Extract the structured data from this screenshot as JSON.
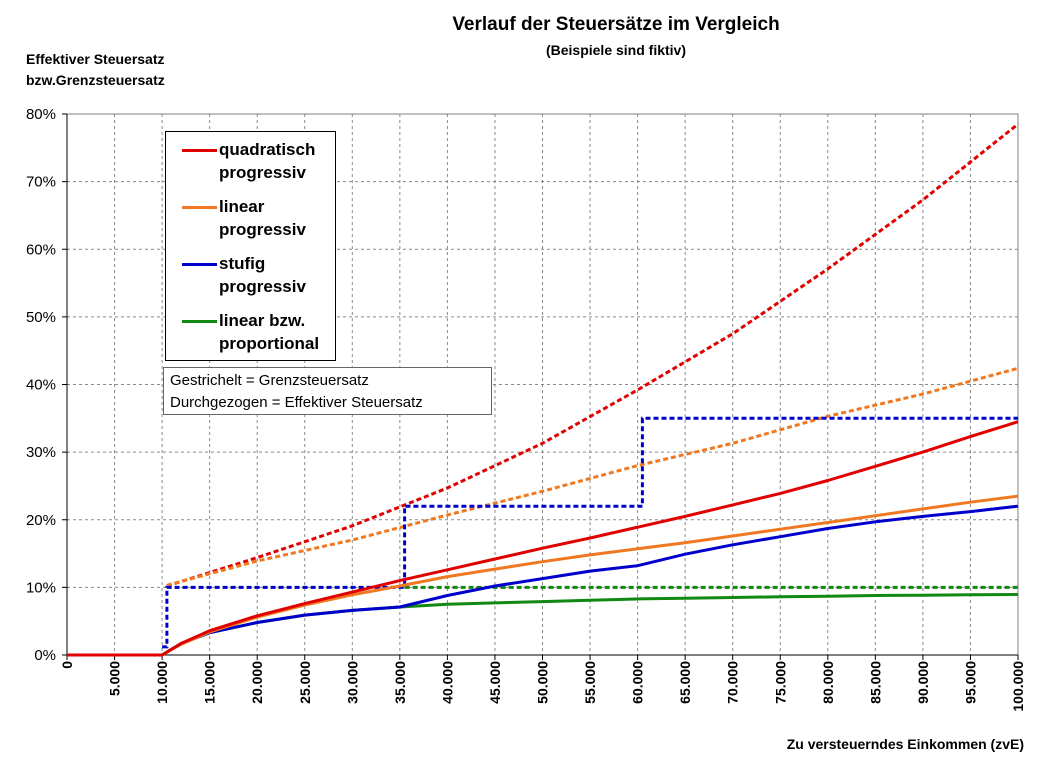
{
  "chart_data": {
    "type": "line",
    "title": "Verlauf der Steuersätze im Vergleich",
    "subtitle": "(Beispiele sind fiktiv)",
    "ylabel_lines": [
      "Effektiver Steuersatz",
      "bzw.Grenzsteuersatz"
    ],
    "xlabel": "Zu versteuerndes Einkommen (zvE)",
    "xlim": [
      0,
      100000
    ],
    "ylim": [
      0,
      80
    ],
    "x_ticks": [
      0,
      5000,
      10000,
      15000,
      20000,
      25000,
      30000,
      35000,
      40000,
      45000,
      50000,
      55000,
      60000,
      65000,
      70000,
      75000,
      80000,
      85000,
      90000,
      95000,
      100000
    ],
    "x_tick_labels": [
      "0",
      "5.000",
      "10.000",
      "15.000",
      "20.000",
      "25.000",
      "30.000",
      "35.000",
      "40.000",
      "45.000",
      "50.000",
      "55.000",
      "60.000",
      "65.000",
      "70.000",
      "75.000",
      "80.000",
      "85.000",
      "90.000",
      "95.000",
      "100.000"
    ],
    "y_ticks": [
      0,
      10,
      20,
      30,
      40,
      50,
      60,
      70,
      80
    ],
    "y_tick_labels": [
      "0%",
      "10%",
      "20%",
      "30%",
      "40%",
      "50%",
      "60%",
      "70%",
      "80%"
    ],
    "grid": true,
    "legend_position": "top-left",
    "series": [
      {
        "name": "quadratisch progressiv",
        "legend_lines": [
          "quadratisch",
          "progressiv"
        ],
        "color": "#e00000",
        "effective": [
          [
            0,
            0
          ],
          [
            10000,
            0
          ],
          [
            12000,
            1.7
          ],
          [
            15000,
            3.6
          ],
          [
            20000,
            5.8
          ],
          [
            25000,
            7.6
          ],
          [
            30000,
            9.3
          ],
          [
            35000,
            11.0
          ],
          [
            40000,
            12.6
          ],
          [
            45000,
            14.2
          ],
          [
            50000,
            15.8
          ],
          [
            55000,
            17.3
          ],
          [
            60000,
            18.9
          ],
          [
            65000,
            20.5
          ],
          [
            70000,
            22.2
          ],
          [
            75000,
            23.9
          ],
          [
            80000,
            25.8
          ],
          [
            85000,
            27.9
          ],
          [
            90000,
            30.0
          ],
          [
            95000,
            32.3
          ],
          [
            100000,
            34.5
          ]
        ],
        "marginal": [
          [
            10500,
            10.2
          ],
          [
            20000,
            14.4
          ],
          [
            30000,
            19.1
          ],
          [
            40000,
            24.7
          ],
          [
            50000,
            31.3
          ],
          [
            60000,
            39.2
          ],
          [
            70000,
            47.5
          ],
          [
            80000,
            57.1
          ],
          [
            90000,
            67.3
          ],
          [
            100000,
            78.5
          ]
        ]
      },
      {
        "name": "linear progressiv",
        "legend_lines": [
          "linear",
          "progressiv"
        ],
        "color": "#f07820",
        "effective": [
          [
            0,
            0
          ],
          [
            10000,
            0
          ],
          [
            12000,
            1.6
          ],
          [
            15000,
            3.4
          ],
          [
            20000,
            5.6
          ],
          [
            25000,
            7.4
          ],
          [
            30000,
            8.9
          ],
          [
            35000,
            10.2
          ],
          [
            40000,
            11.6
          ],
          [
            45000,
            12.7
          ],
          [
            50000,
            13.8
          ],
          [
            55000,
            14.8
          ],
          [
            60000,
            15.7
          ],
          [
            65000,
            16.6
          ],
          [
            70000,
            17.6
          ],
          [
            75000,
            18.6
          ],
          [
            80000,
            19.6
          ],
          [
            85000,
            20.6
          ],
          [
            90000,
            21.6
          ],
          [
            95000,
            22.6
          ],
          [
            100000,
            23.5
          ]
        ],
        "marginal": [
          [
            10500,
            10.3
          ],
          [
            20000,
            13.9
          ],
          [
            30000,
            17.0
          ],
          [
            40000,
            20.7
          ],
          [
            50000,
            24.2
          ],
          [
            60000,
            28.0
          ],
          [
            70000,
            31.3
          ],
          [
            80000,
            35.3
          ],
          [
            90000,
            38.6
          ],
          [
            100000,
            42.4
          ]
        ]
      },
      {
        "name": "stufig progressiv",
        "legend_lines": [
          "stufig",
          "progressiv"
        ],
        "color": "#0000cc",
        "effective": [
          [
            0,
            0
          ],
          [
            10000,
            0
          ],
          [
            12000,
            1.7
          ],
          [
            15000,
            3.3
          ],
          [
            20000,
            4.8
          ],
          [
            25000,
            5.9
          ],
          [
            30000,
            6.6
          ],
          [
            35000,
            7.1
          ],
          [
            40000,
            8.8
          ],
          [
            45000,
            10.2
          ],
          [
            50000,
            11.3
          ],
          [
            55000,
            12.4
          ],
          [
            60000,
            13.2
          ],
          [
            65000,
            14.9
          ],
          [
            70000,
            16.3
          ],
          [
            75000,
            17.5
          ],
          [
            80000,
            18.7
          ],
          [
            85000,
            19.7
          ],
          [
            90000,
            20.5
          ],
          [
            95000,
            21.2
          ],
          [
            100000,
            22.0
          ]
        ],
        "marginal": [
          [
            10000,
            1.2
          ],
          [
            10500,
            1.2
          ],
          [
            10500,
            10.0
          ],
          [
            35500,
            10.0
          ],
          [
            35500,
            22.0
          ],
          [
            60500,
            22.0
          ],
          [
            60500,
            35.0
          ],
          [
            100000,
            35.0
          ]
        ]
      },
      {
        "name": "linear bzw. proportional",
        "legend_lines": [
          "linear bzw.",
          "proportional"
        ],
        "color": "#118811",
        "effective": [
          [
            0,
            0
          ],
          [
            10000,
            0
          ],
          [
            12000,
            1.7
          ],
          [
            15000,
            3.3
          ],
          [
            20000,
            4.8
          ],
          [
            25000,
            5.9
          ],
          [
            30000,
            6.6
          ],
          [
            35000,
            7.1
          ],
          [
            40000,
            7.5
          ],
          [
            45000,
            7.7
          ],
          [
            50000,
            7.9
          ],
          [
            55000,
            8.1
          ],
          [
            60000,
            8.3
          ],
          [
            65000,
            8.4
          ],
          [
            70000,
            8.5
          ],
          [
            75000,
            8.6
          ],
          [
            80000,
            8.7
          ],
          [
            85000,
            8.8
          ],
          [
            90000,
            8.85
          ],
          [
            95000,
            8.9
          ],
          [
            100000,
            8.95
          ]
        ],
        "marginal": [
          [
            35500,
            10.0
          ],
          [
            100000,
            10.0
          ]
        ]
      }
    ],
    "annotation_lines": [
      "Gestrichelt = Grenzsteuersatz",
      "Durchgezogen = Effektiver Steuersatz"
    ]
  }
}
